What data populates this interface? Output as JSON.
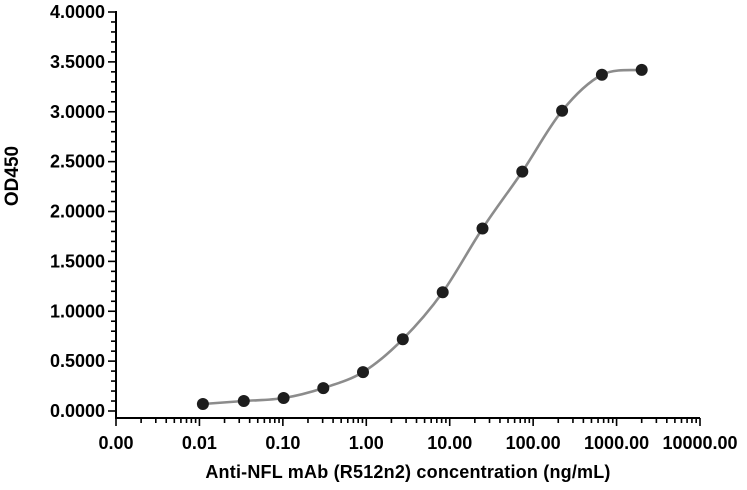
{
  "page": {
    "background": "#ffffff"
  },
  "styles": {
    "axis": "#000000",
    "text": "#000000",
    "curve": "#8c8c8c",
    "marker": "#1d1d1d",
    "background": "#ffffff"
  },
  "chart_data": {
    "type": "line",
    "title": "",
    "xlabel": "Anti-NFL mAb (R512n2) concentration (ng/mL)",
    "ylabel": "OD450",
    "x_scale": "log10",
    "xlim": [
      0.001,
      10000
    ],
    "ylim": [
      0,
      4
    ],
    "y_major_step": 0.5,
    "y_minor_step": 0.1,
    "grid": false,
    "legend": false,
    "marker": "filled-circle",
    "curve": "smooth-sigmoid",
    "x": [
      0.011,
      0.034,
      0.102,
      0.305,
      0.914,
      2.743,
      8.23,
      24.69,
      74.07,
      222.22,
      666.67,
      2000
    ],
    "y": [
      0.07,
      0.1,
      0.13,
      0.23,
      0.39,
      0.72,
      1.19,
      1.83,
      2.4,
      3.01,
      3.37,
      3.42
    ],
    "x_tick_labels": [
      "0.00",
      "0.01",
      "0.10",
      "1.00",
      "10.00",
      "100.00",
      "1000.00",
      "10000.00"
    ],
    "y_tick_labels": [
      "0.0000",
      "0.5000",
      "1.0000",
      "1.5000",
      "2.0000",
      "2.5000",
      "3.0000",
      "3.5000",
      "4.0000"
    ]
  }
}
